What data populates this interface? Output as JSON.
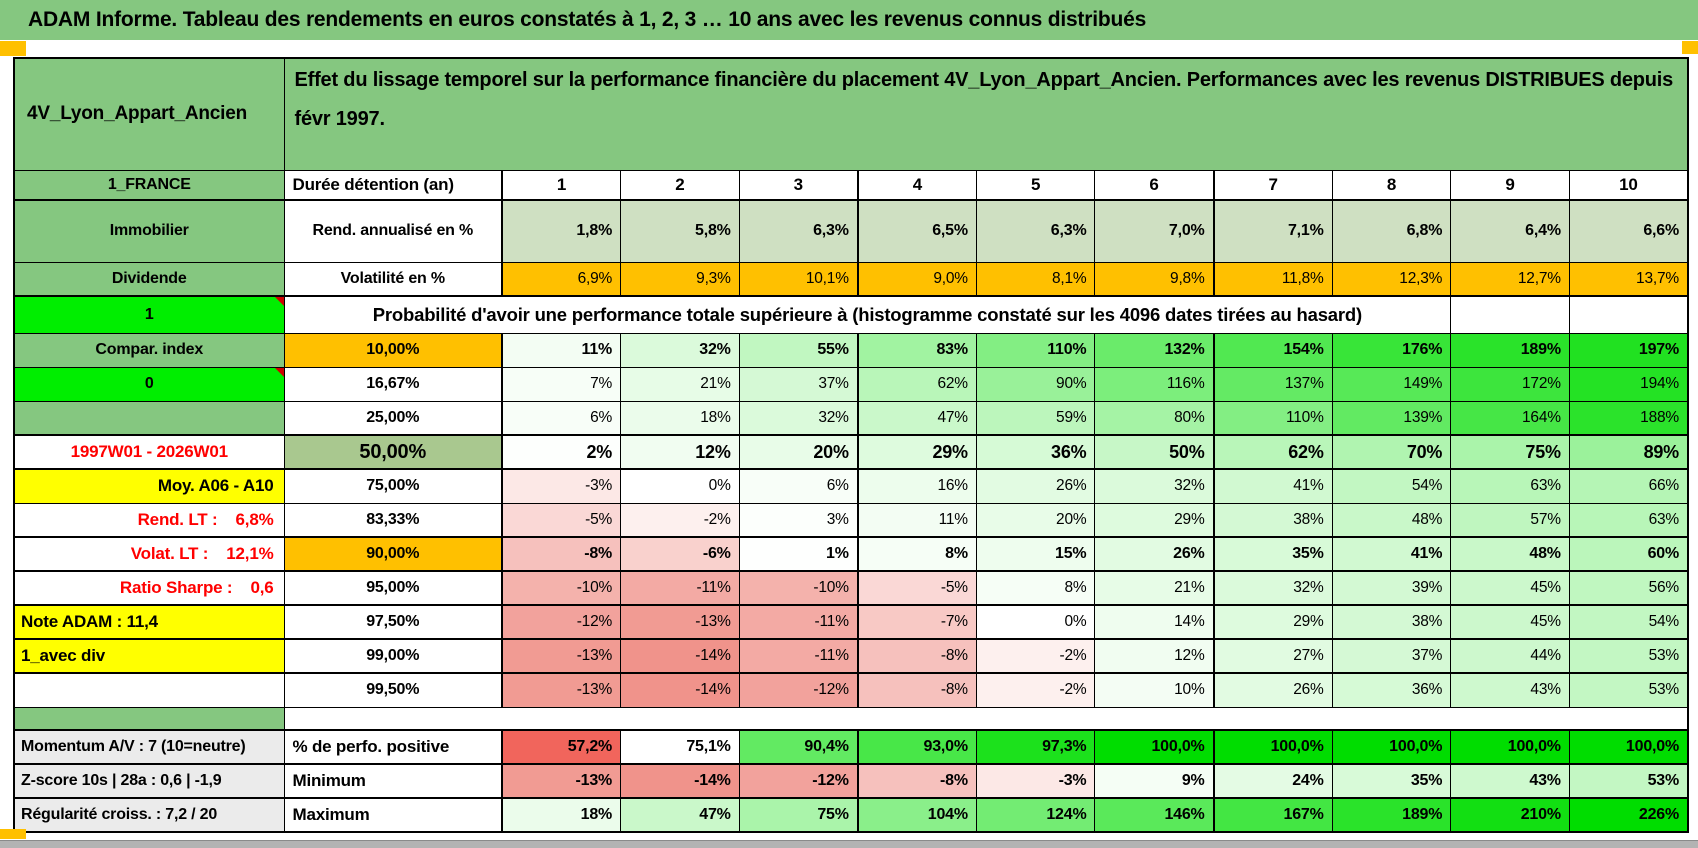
{
  "title_bar": "ADAM Informe. Tableau des rendements en euros constatés à 1, 2, 3 … 10 ans avec les revenus connus distribués",
  "header": {
    "product": "4V_Lyon_Appart_Ancien",
    "description": "Effet du lissage temporel sur la performance financière du placement 4V_Lyon_Appart_Ancien. Performances avec les revenus DISTRIBUES depuis févr 1997."
  },
  "columns_row": {
    "a": "1_FRANCE",
    "b": "Durée détention (an)",
    "cols": [
      "1",
      "2",
      "3",
      "4",
      "5",
      "6",
      "7",
      "8",
      "9",
      "10"
    ]
  },
  "rows": [
    {
      "a": "Immobilier",
      "a_style": "green",
      "b": "Rend. annualisé en %",
      "cells": [
        "1,8%",
        "5,8%",
        "6,3%",
        "6,5%",
        "6,3%",
        "7,0%",
        "7,1%",
        "6,8%",
        "6,4%",
        "6,6%"
      ],
      "cell_style": "sage",
      "bold": true,
      "size": "tall"
    },
    {
      "a": "Dividende",
      "a_style": "green",
      "b": "Volatilité en %",
      "cells": [
        "6,9%",
        "9,3%",
        "10,1%",
        "9,0%",
        "8,1%",
        "9,8%",
        "11,8%",
        "12,3%",
        "12,7%",
        "13,7%"
      ],
      "cell_style": "orange",
      "thick_bottom": true
    },
    {
      "a": "1",
      "a_style": "bright",
      "a_comment": true,
      "merged": "Probabilité d'avoir une performance totale supérieure à (histogramme constaté sur les 4096 dates tirées au hasard)",
      "merged_span": 9,
      "trailing_empty": 2,
      "size": "prob"
    },
    {
      "a": "Compar. index",
      "a_style": "green",
      "b": "10,00%",
      "b_style": "orange",
      "cells": [
        "11%",
        "32%",
        "55%",
        "83%",
        "110%",
        "132%",
        "154%",
        "176%",
        "189%",
        "197%"
      ],
      "scale": "main",
      "bold": true
    },
    {
      "a": "0",
      "a_style": "bright",
      "a_comment": true,
      "b": "16,67%",
      "cells": [
        "7%",
        "21%",
        "37%",
        "62%",
        "90%",
        "116%",
        "137%",
        "149%",
        "172%",
        "194%"
      ],
      "scale": "main"
    },
    {
      "a": "",
      "a_style": "green",
      "b": "25,00%",
      "cells": [
        "6%",
        "18%",
        "32%",
        "47%",
        "59%",
        "80%",
        "110%",
        "139%",
        "164%",
        "188%"
      ],
      "scale": "main",
      "thick_bottom": true
    },
    {
      "a": "1997W01 - 2026W01",
      "a_style": "red-center",
      "b": "50,00%",
      "b_style": "sage",
      "cells": [
        "2%",
        "12%",
        "20%",
        "29%",
        "36%",
        "50%",
        "62%",
        "70%",
        "75%",
        "89%"
      ],
      "scale": "main",
      "bold": true,
      "big": true,
      "thick_bottom": true
    },
    {
      "a": "Moy. A06 - A10",
      "a_style": "yellow-right",
      "b": "75,00%",
      "cells": [
        "-3%",
        "0%",
        "6%",
        "16%",
        "26%",
        "32%",
        "41%",
        "54%",
        "63%",
        "66%"
      ],
      "scale": "main"
    },
    {
      "a": "Rend. LT :    6,8%",
      "a_style": "red-right",
      "b": "83,33%",
      "cells": [
        "-5%",
        "-2%",
        "3%",
        "11%",
        "20%",
        "29%",
        "38%",
        "48%",
        "57%",
        "63%"
      ],
      "scale": "main",
      "thick_bottom": true
    },
    {
      "a": "Volat. LT :    12,1%",
      "a_style": "red-right",
      "b": "90,00%",
      "b_style": "orange",
      "cells": [
        "-8%",
        "-6%",
        "1%",
        "8%",
        "15%",
        "26%",
        "35%",
        "41%",
        "48%",
        "60%"
      ],
      "scale": "main",
      "bold": true,
      "thick_bottom": true
    },
    {
      "a": "Ratio Sharpe :    0,6",
      "a_style": "red-right",
      "b": "95,00%",
      "cells": [
        "-10%",
        "-11%",
        "-10%",
        "-5%",
        "8%",
        "21%",
        "32%",
        "39%",
        "45%",
        "56%"
      ],
      "scale": "main",
      "thick_bottom": true
    },
    {
      "a": "Note ADAM : 11,4",
      "a_style": "yellow-left",
      "b": "97,50%",
      "cells": [
        "-12%",
        "-13%",
        "-11%",
        "-7%",
        "0%",
        "14%",
        "29%",
        "38%",
        "45%",
        "54%"
      ],
      "scale": "main",
      "thick_bottom": true
    },
    {
      "a": "1_avec div",
      "a_style": "yellow-left",
      "b": "99,00%",
      "cells": [
        "-13%",
        "-14%",
        "-11%",
        "-8%",
        "-2%",
        "12%",
        "27%",
        "37%",
        "44%",
        "53%"
      ],
      "scale": "main",
      "thick_bottom": true
    },
    {
      "a": "",
      "a_style": "white",
      "b": "99,50%",
      "cells": [
        "-13%",
        "-14%",
        "-12%",
        "-8%",
        "-2%",
        "10%",
        "26%",
        "36%",
        "43%",
        "53%"
      ],
      "scale": "main"
    }
  ],
  "footer_rows": [
    {
      "a": "Momentum A/V : 7 (10=neutre)",
      "b": "% de perfo. positive",
      "cells": [
        "57,2%",
        "75,1%",
        "90,4%",
        "93,0%",
        "97,3%",
        "100,0%",
        "100,0%",
        "100,0%",
        "100,0%",
        "100,0%"
      ],
      "scale": "perfo",
      "bold": true
    },
    {
      "a": "Z-score 10s | 28a : 0,6 | -1,9",
      "b": "Minimum",
      "cells": [
        "-13%",
        "-14%",
        "-12%",
        "-8%",
        "-3%",
        "9%",
        "24%",
        "35%",
        "43%",
        "53%"
      ],
      "scale": "main",
      "bold": true
    },
    {
      "a": "Régularité croiss. : 7,2 / 20",
      "b": "Maximum",
      "cells": [
        "18%",
        "47%",
        "75%",
        "104%",
        "124%",
        "146%",
        "167%",
        "189%",
        "210%",
        "226%"
      ],
      "scale": "main",
      "bold": true
    }
  ],
  "colors": {
    "band_green": "#85c780",
    "bright_green": "#00ee00",
    "orange": "#ffc000",
    "yellow": "#ffff00",
    "sage_light": "#cfe0c2",
    "sage_dark": "#a9c88f",
    "gray_label": "#ebebeb",
    "red_text": "#ff0000",
    "scale_positive_end": "#00dd00",
    "scale_negative_end": "#f0938b",
    "perfo_negative_end": "#f1655c",
    "scale_white": "#ffffff"
  },
  "scales": {
    "main": {
      "neg_limit": -14,
      "pos_limit": 226
    },
    "perfo": {
      "min": 57.2,
      "mid": 75.1,
      "max": 100
    }
  }
}
